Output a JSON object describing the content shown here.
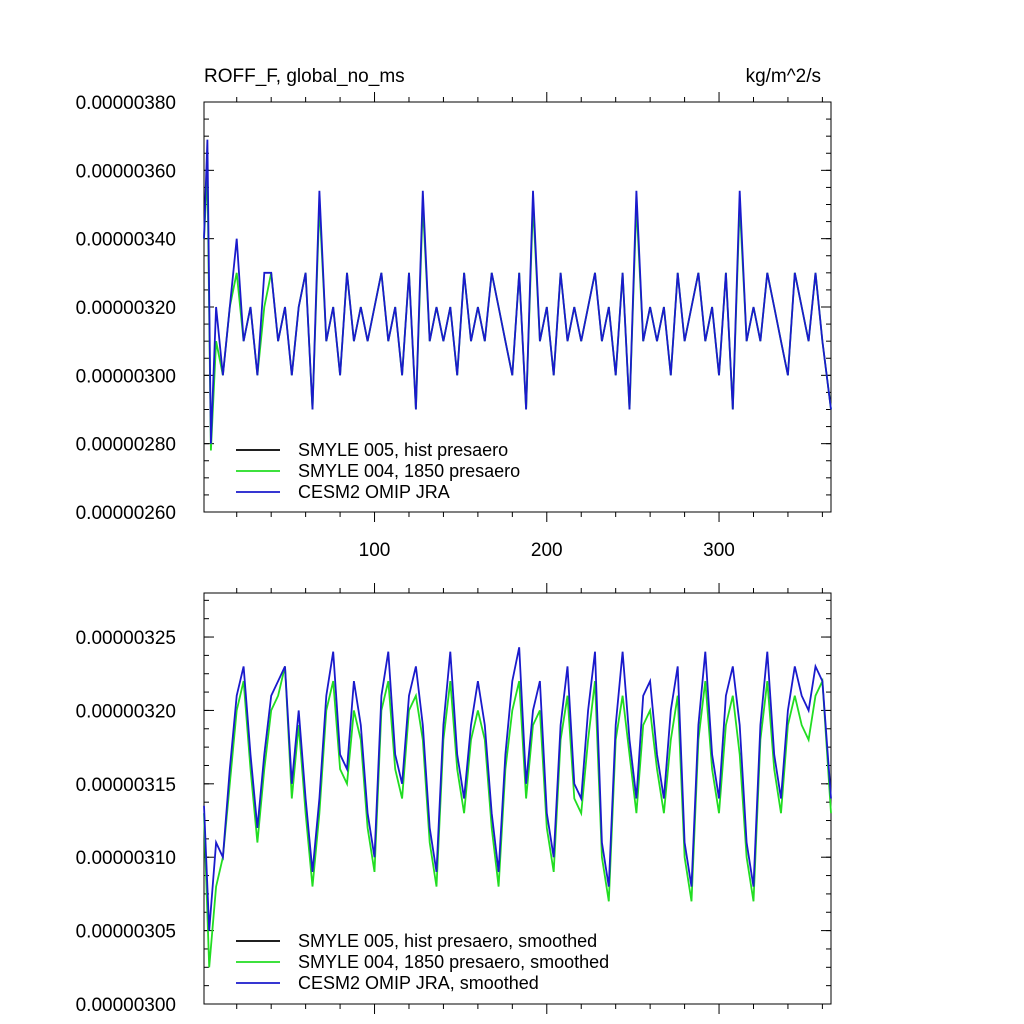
{
  "chart_data": [
    {
      "type": "line",
      "title": "ROFF_F, global_no_ms",
      "units": "kg/m^2/s",
      "xlim": [
        1,
        365
      ],
      "ylim": [
        2.6e-06,
        3.8e-06
      ],
      "y_tick_labels": [
        "0.00000380",
        "0.00000360",
        "0.00000340",
        "0.00000320",
        "0.00000300",
        "0.00000280",
        "0.00000260"
      ],
      "y_ticks": [
        3.8e-06,
        3.6e-06,
        3.4e-06,
        3.2e-06,
        3e-06,
        2.8e-06,
        2.6e-06
      ],
      "x_tick_labels": [
        "100",
        "200",
        "300"
      ],
      "x_ticks": [
        100,
        200,
        300
      ],
      "legend": [
        "SMYLE 005, hist presaero",
        "SMYLE 004, 1850 presaero",
        "CESM2 OMIP JRA"
      ],
      "legend_placement": "bottom-left",
      "series": [
        {
          "name": "SMYLE 005, hist presaero",
          "color": "#000000",
          "x": [],
          "y": []
        },
        {
          "name": "SMYLE 004, 1850 presaero",
          "color": "#22dd22",
          "x": [
            1,
            3,
            5,
            8,
            12,
            16,
            20,
            24,
            28,
            32,
            36,
            40,
            44,
            48,
            52,
            56,
            60,
            64,
            68,
            72,
            76,
            80,
            84,
            88,
            92,
            96,
            100,
            104,
            108,
            112,
            116,
            120,
            124,
            128,
            132,
            136,
            140,
            144,
            148,
            152,
            156,
            160,
            164,
            168,
            172,
            176,
            180,
            184,
            188,
            192,
            196,
            200,
            204,
            208,
            212,
            216,
            220,
            224,
            228,
            232,
            236,
            240,
            244,
            248,
            252,
            256,
            260,
            264,
            268,
            272,
            276,
            280,
            284,
            288,
            292,
            296,
            300,
            304,
            308,
            312,
            316,
            320,
            324,
            328,
            332,
            336,
            340,
            344,
            348,
            352,
            356,
            360,
            365
          ],
          "y": [
            3.4e-06,
            3.6e-06,
            2.78e-06,
            3.1e-06,
            3e-06,
            3.2e-06,
            3.3e-06,
            3.1e-06,
            3.2e-06,
            3e-06,
            3.2e-06,
            3.3e-06,
            3.1e-06,
            3.2e-06,
            3e-06,
            3.2e-06,
            3.3e-06,
            2.9e-06,
            3.5e-06,
            3.1e-06,
            3.2e-06,
            3e-06,
            3.3e-06,
            3.1e-06,
            3.2e-06,
            3.1e-06,
            3.2e-06,
            3.3e-06,
            3.1e-06,
            3.2e-06,
            3e-06,
            3.3e-06,
            2.9e-06,
            3.5e-06,
            3.1e-06,
            3.2e-06,
            3.1e-06,
            3.2e-06,
            3e-06,
            3.3e-06,
            3.1e-06,
            3.2e-06,
            3.1e-06,
            3.3e-06,
            3.2e-06,
            3.1e-06,
            3e-06,
            3.3e-06,
            2.9e-06,
            3.5e-06,
            3.1e-06,
            3.2e-06,
            3e-06,
            3.3e-06,
            3.1e-06,
            3.2e-06,
            3.1e-06,
            3.2e-06,
            3.3e-06,
            3.1e-06,
            3.2e-06,
            3e-06,
            3.3e-06,
            2.9e-06,
            3.5e-06,
            3.1e-06,
            3.2e-06,
            3.1e-06,
            3.2e-06,
            3e-06,
            3.3e-06,
            3.1e-06,
            3.2e-06,
            3.3e-06,
            3.1e-06,
            3.2e-06,
            3e-06,
            3.3e-06,
            2.9e-06,
            3.5e-06,
            3.1e-06,
            3.2e-06,
            3.1e-06,
            3.3e-06,
            3.2e-06,
            3.1e-06,
            3e-06,
            3.3e-06,
            3.2e-06,
            3.1e-06,
            3.3e-06,
            3.1e-06,
            2.9e-06
          ]
        },
        {
          "name": "CESM2 OMIP JRA",
          "color": "#1a1acc",
          "x": [
            1,
            3,
            5,
            8,
            12,
            16,
            20,
            24,
            28,
            32,
            36,
            40,
            44,
            48,
            52,
            56,
            60,
            64,
            68,
            72,
            76,
            80,
            84,
            88,
            92,
            96,
            100,
            104,
            108,
            112,
            116,
            120,
            124,
            128,
            132,
            136,
            140,
            144,
            148,
            152,
            156,
            160,
            164,
            168,
            172,
            176,
            180,
            184,
            188,
            192,
            196,
            200,
            204,
            208,
            212,
            216,
            220,
            224,
            228,
            232,
            236,
            240,
            244,
            248,
            252,
            256,
            260,
            264,
            268,
            272,
            276,
            280,
            284,
            288,
            292,
            296,
            300,
            304,
            308,
            312,
            316,
            320,
            324,
            328,
            332,
            336,
            340,
            344,
            348,
            352,
            356,
            360,
            365
          ],
          "y": [
            3.4e-06,
            3.69e-06,
            2.8e-06,
            3.2e-06,
            3e-06,
            3.2e-06,
            3.4e-06,
            3.1e-06,
            3.2e-06,
            3e-06,
            3.3e-06,
            3.3e-06,
            3.1e-06,
            3.2e-06,
            3e-06,
            3.2e-06,
            3.3e-06,
            2.9e-06,
            3.54e-06,
            3.1e-06,
            3.2e-06,
            3e-06,
            3.3e-06,
            3.1e-06,
            3.2e-06,
            3.1e-06,
            3.2e-06,
            3.3e-06,
            3.1e-06,
            3.2e-06,
            3e-06,
            3.3e-06,
            2.9e-06,
            3.54e-06,
            3.1e-06,
            3.2e-06,
            3.1e-06,
            3.2e-06,
            3e-06,
            3.3e-06,
            3.1e-06,
            3.2e-06,
            3.1e-06,
            3.3e-06,
            3.2e-06,
            3.1e-06,
            3e-06,
            3.3e-06,
            2.9e-06,
            3.54e-06,
            3.1e-06,
            3.2e-06,
            3e-06,
            3.3e-06,
            3.1e-06,
            3.2e-06,
            3.1e-06,
            3.2e-06,
            3.3e-06,
            3.1e-06,
            3.2e-06,
            3e-06,
            3.3e-06,
            2.9e-06,
            3.54e-06,
            3.1e-06,
            3.2e-06,
            3.1e-06,
            3.2e-06,
            3e-06,
            3.3e-06,
            3.1e-06,
            3.2e-06,
            3.3e-06,
            3.1e-06,
            3.2e-06,
            3e-06,
            3.3e-06,
            2.9e-06,
            3.54e-06,
            3.1e-06,
            3.2e-06,
            3.1e-06,
            3.3e-06,
            3.2e-06,
            3.1e-06,
            3e-06,
            3.3e-06,
            3.2e-06,
            3.1e-06,
            3.3e-06,
            3.1e-06,
            2.9e-06
          ]
        }
      ]
    },
    {
      "type": "line",
      "xlim": [
        1,
        365
      ],
      "ylim": [
        3e-06,
        3.28e-06
      ],
      "y_tick_labels": [
        "0.00000325",
        "0.00000320",
        "0.00000315",
        "0.00000310",
        "0.00000305",
        "0.00000300"
      ],
      "y_ticks": [
        3.25e-06,
        3.2e-06,
        3.15e-06,
        3.1e-06,
        3.05e-06,
        3e-06
      ],
      "legend": [
        "SMYLE 005, hist presaero, smoothed",
        "SMYLE 004, 1850 presaero, smoothed",
        "CESM2 OMIP JRA, smoothed"
      ],
      "legend_placement": "bottom-left",
      "series": [
        {
          "name": "SMYLE 005, hist presaero, smoothed",
          "color": "#000000",
          "x": [],
          "y": []
        },
        {
          "name": "SMYLE 004, 1850 presaero, smoothed",
          "color": "#22dd22",
          "x": [
            1,
            4,
            8,
            12,
            16,
            20,
            24,
            28,
            32,
            36,
            40,
            44,
            48,
            52,
            56,
            60,
            64,
            68,
            72,
            76,
            80,
            84,
            88,
            92,
            96,
            100,
            104,
            108,
            112,
            116,
            120,
            124,
            128,
            132,
            136,
            140,
            144,
            148,
            152,
            156,
            160,
            164,
            168,
            172,
            176,
            180,
            184,
            188,
            192,
            196,
            200,
            204,
            208,
            212,
            216,
            220,
            224,
            228,
            232,
            236,
            240,
            244,
            248,
            252,
            256,
            260,
            264,
            268,
            272,
            276,
            280,
            284,
            288,
            292,
            296,
            300,
            304,
            308,
            312,
            316,
            320,
            324,
            328,
            332,
            336,
            340,
            344,
            348,
            352,
            356,
            360,
            365
          ],
          "y": [
            3.13e-06,
            3.025e-06,
            3.08e-06,
            3.1e-06,
            3.15e-06,
            3.2e-06,
            3.22e-06,
            3.16e-06,
            3.11e-06,
            3.16e-06,
            3.2e-06,
            3.21e-06,
            3.23e-06,
            3.14e-06,
            3.19e-06,
            3.13e-06,
            3.08e-06,
            3.13e-06,
            3.2e-06,
            3.22e-06,
            3.16e-06,
            3.15e-06,
            3.2e-06,
            3.18e-06,
            3.12e-06,
            3.09e-06,
            3.2e-06,
            3.22e-06,
            3.16e-06,
            3.14e-06,
            3.2e-06,
            3.21e-06,
            3.18e-06,
            3.11e-06,
            3.08e-06,
            3.18e-06,
            3.22e-06,
            3.16e-06,
            3.13e-06,
            3.18e-06,
            3.2e-06,
            3.18e-06,
            3.12e-06,
            3.08e-06,
            3.16e-06,
            3.2e-06,
            3.22e-06,
            3.14e-06,
            3.19e-06,
            3.2e-06,
            3.12e-06,
            3.09e-06,
            3.18e-06,
            3.21e-06,
            3.14e-06,
            3.13e-06,
            3.18e-06,
            3.22e-06,
            3.1e-06,
            3.07e-06,
            3.18e-06,
            3.21e-06,
            3.17e-06,
            3.13e-06,
            3.19e-06,
            3.2e-06,
            3.16e-06,
            3.13e-06,
            3.18e-06,
            3.21e-06,
            3.1e-06,
            3.07e-06,
            3.18e-06,
            3.22e-06,
            3.16e-06,
            3.13e-06,
            3.19e-06,
            3.21e-06,
            3.17e-06,
            3.1e-06,
            3.07e-06,
            3.18e-06,
            3.22e-06,
            3.16e-06,
            3.13e-06,
            3.19e-06,
            3.21e-06,
            3.19e-06,
            3.18e-06,
            3.21e-06,
            3.22e-06,
            3.13e-06
          ]
        },
        {
          "name": "CESM2 OMIP JRA, smoothed",
          "color": "#1a1acc",
          "x": [
            1,
            4,
            8,
            12,
            16,
            20,
            24,
            28,
            32,
            36,
            40,
            44,
            48,
            52,
            56,
            60,
            64,
            68,
            72,
            76,
            80,
            84,
            88,
            92,
            96,
            100,
            104,
            108,
            112,
            116,
            120,
            124,
            128,
            132,
            136,
            140,
            144,
            148,
            152,
            156,
            160,
            164,
            168,
            172,
            176,
            180,
            184,
            188,
            192,
            196,
            200,
            204,
            208,
            212,
            216,
            220,
            224,
            228,
            232,
            236,
            240,
            244,
            248,
            252,
            256,
            260,
            264,
            268,
            272,
            276,
            280,
            284,
            288,
            292,
            296,
            300,
            304,
            308,
            312,
            316,
            320,
            324,
            328,
            332,
            336,
            340,
            344,
            348,
            352,
            356,
            360,
            365
          ],
          "y": [
            3.135e-06,
            3.05e-06,
            3.11e-06,
            3.1e-06,
            3.16e-06,
            3.21e-06,
            3.23e-06,
            3.17e-06,
            3.12e-06,
            3.17e-06,
            3.21e-06,
            3.22e-06,
            3.23e-06,
            3.15e-06,
            3.2e-06,
            3.14e-06,
            3.09e-06,
            3.14e-06,
            3.21e-06,
            3.24e-06,
            3.17e-06,
            3.16e-06,
            3.22e-06,
            3.19e-06,
            3.13e-06,
            3.1e-06,
            3.21e-06,
            3.24e-06,
            3.17e-06,
            3.15e-06,
            3.21e-06,
            3.23e-06,
            3.19e-06,
            3.12e-06,
            3.09e-06,
            3.19e-06,
            3.24e-06,
            3.17e-06,
            3.14e-06,
            3.19e-06,
            3.22e-06,
            3.19e-06,
            3.13e-06,
            3.09e-06,
            3.17e-06,
            3.22e-06,
            3.243e-06,
            3.15e-06,
            3.2e-06,
            3.22e-06,
            3.13e-06,
            3.1e-06,
            3.19e-06,
            3.23e-06,
            3.15e-06,
            3.14e-06,
            3.2e-06,
            3.24e-06,
            3.11e-06,
            3.08e-06,
            3.19e-06,
            3.24e-06,
            3.18e-06,
            3.14e-06,
            3.21e-06,
            3.22e-06,
            3.17e-06,
            3.14e-06,
            3.2e-06,
            3.23e-06,
            3.11e-06,
            3.08e-06,
            3.19e-06,
            3.24e-06,
            3.17e-06,
            3.14e-06,
            3.21e-06,
            3.23e-06,
            3.19e-06,
            3.11e-06,
            3.08e-06,
            3.19e-06,
            3.24e-06,
            3.17e-06,
            3.14e-06,
            3.2e-06,
            3.23e-06,
            3.21e-06,
            3.2e-06,
            3.23e-06,
            3.22e-06,
            3.14e-06
          ]
        }
      ]
    }
  ]
}
